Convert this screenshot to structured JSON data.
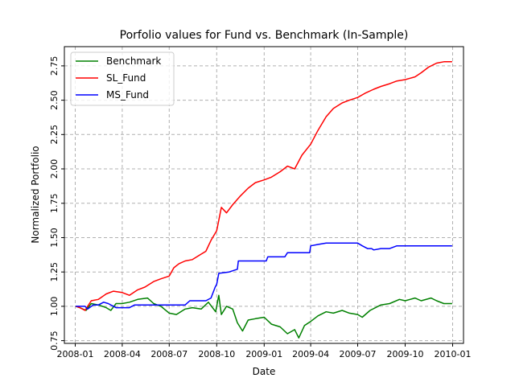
{
  "chart_data": {
    "type": "line",
    "title": "Porfolio values for Fund vs. Benchmark (In-Sample)",
    "xlabel": "Date",
    "ylabel": "Normalized Portfolio",
    "xlim": [
      "2007-12-11",
      "2010-01-22"
    ],
    "ylim": [
      0.73,
      2.89
    ],
    "grid": true,
    "legend_position": "top-left",
    "xticks": [
      "2008-01",
      "2008-04",
      "2008-07",
      "2008-10",
      "2009-01",
      "2009-04",
      "2009-07",
      "2009-10",
      "2010-01"
    ],
    "yticks": [
      "0.75",
      "1.00",
      "1.25",
      "1.50",
      "1.75",
      "2.00",
      "2.25",
      "2.50",
      "2.75"
    ],
    "series": [
      {
        "name": "Benchmark",
        "color": "#008000",
        "points": [
          [
            "2008-01-02",
            1.0
          ],
          [
            "2008-01-10",
            0.99
          ],
          [
            "2008-01-22",
            0.97
          ],
          [
            "2008-02-01",
            1.02
          ],
          [
            "2008-02-15",
            1.01
          ],
          [
            "2008-03-01",
            0.99
          ],
          [
            "2008-03-10",
            0.97
          ],
          [
            "2008-03-20",
            1.02
          ],
          [
            "2008-04-01",
            1.02
          ],
          [
            "2008-04-15",
            1.03
          ],
          [
            "2008-05-01",
            1.05
          ],
          [
            "2008-05-20",
            1.06
          ],
          [
            "2008-06-01",
            1.02
          ],
          [
            "2008-06-15",
            1.0
          ],
          [
            "2008-07-01",
            0.95
          ],
          [
            "2008-07-15",
            0.94
          ],
          [
            "2008-08-01",
            0.98
          ],
          [
            "2008-08-15",
            0.99
          ],
          [
            "2008-09-01",
            0.98
          ],
          [
            "2008-09-15",
            1.03
          ],
          [
            "2008-09-29",
            0.96
          ],
          [
            "2008-10-05",
            1.08
          ],
          [
            "2008-10-10",
            0.94
          ],
          [
            "2008-10-20",
            1.0
          ],
          [
            "2008-11-01",
            0.98
          ],
          [
            "2008-11-10",
            0.88
          ],
          [
            "2008-11-20",
            0.82
          ],
          [
            "2008-12-01",
            0.9
          ],
          [
            "2008-12-15",
            0.91
          ],
          [
            "2009-01-01",
            0.92
          ],
          [
            "2009-01-15",
            0.87
          ],
          [
            "2009-02-01",
            0.85
          ],
          [
            "2009-02-15",
            0.8
          ],
          [
            "2009-03-01",
            0.83
          ],
          [
            "2009-03-09",
            0.77
          ],
          [
            "2009-03-20",
            0.86
          ],
          [
            "2009-04-01",
            0.89
          ],
          [
            "2009-04-15",
            0.93
          ],
          [
            "2009-05-01",
            0.96
          ],
          [
            "2009-05-15",
            0.95
          ],
          [
            "2009-06-01",
            0.97
          ],
          [
            "2009-06-15",
            0.95
          ],
          [
            "2009-07-01",
            0.94
          ],
          [
            "2009-07-10",
            0.92
          ],
          [
            "2009-07-25",
            0.97
          ],
          [
            "2009-08-15",
            1.01
          ],
          [
            "2009-09-01",
            1.02
          ],
          [
            "2009-09-20",
            1.05
          ],
          [
            "2009-10-01",
            1.04
          ],
          [
            "2009-10-20",
            1.06
          ],
          [
            "2009-11-01",
            1.04
          ],
          [
            "2009-11-20",
            1.06
          ],
          [
            "2009-12-01",
            1.04
          ],
          [
            "2009-12-15",
            1.02
          ],
          [
            "2009-12-31",
            1.02
          ]
        ]
      },
      {
        "name": "SL_Fund",
        "color": "#ff0000",
        "points": [
          [
            "2008-01-02",
            1.0
          ],
          [
            "2008-01-10",
            0.99
          ],
          [
            "2008-01-20",
            0.97
          ],
          [
            "2008-02-01",
            1.04
          ],
          [
            "2008-02-15",
            1.05
          ],
          [
            "2008-03-01",
            1.09
          ],
          [
            "2008-03-15",
            1.11
          ],
          [
            "2008-04-01",
            1.1
          ],
          [
            "2008-04-15",
            1.08
          ],
          [
            "2008-05-01",
            1.12
          ],
          [
            "2008-05-15",
            1.14
          ],
          [
            "2008-06-01",
            1.18
          ],
          [
            "2008-06-15",
            1.2
          ],
          [
            "2008-07-01",
            1.22
          ],
          [
            "2008-07-10",
            1.28
          ],
          [
            "2008-07-20",
            1.31
          ],
          [
            "2008-08-01",
            1.33
          ],
          [
            "2008-08-15",
            1.34
          ],
          [
            "2008-09-01",
            1.38
          ],
          [
            "2008-09-10",
            1.4
          ],
          [
            "2008-09-20",
            1.48
          ],
          [
            "2008-10-01",
            1.55
          ],
          [
            "2008-10-10",
            1.72
          ],
          [
            "2008-10-20",
            1.68
          ],
          [
            "2008-11-01",
            1.74
          ],
          [
            "2008-11-15",
            1.8
          ],
          [
            "2008-12-01",
            1.86
          ],
          [
            "2008-12-15",
            1.9
          ],
          [
            "2009-01-01",
            1.92
          ],
          [
            "2009-01-15",
            1.94
          ],
          [
            "2009-02-01",
            1.98
          ],
          [
            "2009-02-15",
            2.02
          ],
          [
            "2009-03-01",
            2.0
          ],
          [
            "2009-03-15",
            2.1
          ],
          [
            "2009-04-01",
            2.18
          ],
          [
            "2009-04-15",
            2.28
          ],
          [
            "2009-05-01",
            2.38
          ],
          [
            "2009-05-15",
            2.44
          ],
          [
            "2009-06-01",
            2.48
          ],
          [
            "2009-06-15",
            2.5
          ],
          [
            "2009-07-01",
            2.52
          ],
          [
            "2009-07-15",
            2.55
          ],
          [
            "2009-08-01",
            2.58
          ],
          [
            "2009-08-15",
            2.6
          ],
          [
            "2009-09-01",
            2.62
          ],
          [
            "2009-09-15",
            2.64
          ],
          [
            "2009-10-01",
            2.65
          ],
          [
            "2009-10-20",
            2.67
          ],
          [
            "2009-11-01",
            2.7
          ],
          [
            "2009-11-15",
            2.74
          ],
          [
            "2009-12-01",
            2.77
          ],
          [
            "2009-12-15",
            2.78
          ],
          [
            "2009-12-31",
            2.78
          ]
        ]
      },
      {
        "name": "MS_Fund",
        "color": "#0000ff",
        "points": [
          [
            "2008-01-02",
            1.0
          ],
          [
            "2008-01-20",
            1.0
          ],
          [
            "2008-01-25",
            0.98
          ],
          [
            "2008-02-05",
            1.01
          ],
          [
            "2008-02-15",
            1.01
          ],
          [
            "2008-02-25",
            1.03
          ],
          [
            "2008-03-05",
            1.02
          ],
          [
            "2008-03-20",
            0.99
          ],
          [
            "2008-04-15",
            0.99
          ],
          [
            "2008-04-25",
            1.01
          ],
          [
            "2008-05-15",
            1.01
          ],
          [
            "2008-06-01",
            1.01
          ],
          [
            "2008-07-01",
            1.01
          ],
          [
            "2008-08-01",
            1.01
          ],
          [
            "2008-08-10",
            1.04
          ],
          [
            "2008-09-10",
            1.04
          ],
          [
            "2008-09-20",
            1.06
          ],
          [
            "2008-09-28",
            1.14
          ],
          [
            "2008-10-01",
            1.16
          ],
          [
            "2008-10-05",
            1.24
          ],
          [
            "2008-10-25",
            1.25
          ],
          [
            "2008-11-10",
            1.27
          ],
          [
            "2008-11-12",
            1.33
          ],
          [
            "2009-01-05",
            1.33
          ],
          [
            "2009-01-08",
            1.36
          ],
          [
            "2009-02-10",
            1.36
          ],
          [
            "2009-02-15",
            1.39
          ],
          [
            "2009-03-30",
            1.39
          ],
          [
            "2009-04-01",
            1.44
          ],
          [
            "2009-04-15",
            1.45
          ],
          [
            "2009-05-01",
            1.46
          ],
          [
            "2009-06-15",
            1.46
          ],
          [
            "2009-07-01",
            1.46
          ],
          [
            "2009-07-10",
            1.44
          ],
          [
            "2009-07-20",
            1.42
          ],
          [
            "2009-07-28",
            1.42
          ],
          [
            "2009-08-01",
            1.41
          ],
          [
            "2009-08-15",
            1.42
          ],
          [
            "2009-09-01",
            1.42
          ],
          [
            "2009-09-15",
            1.44
          ],
          [
            "2009-12-31",
            1.44
          ]
        ]
      }
    ]
  }
}
